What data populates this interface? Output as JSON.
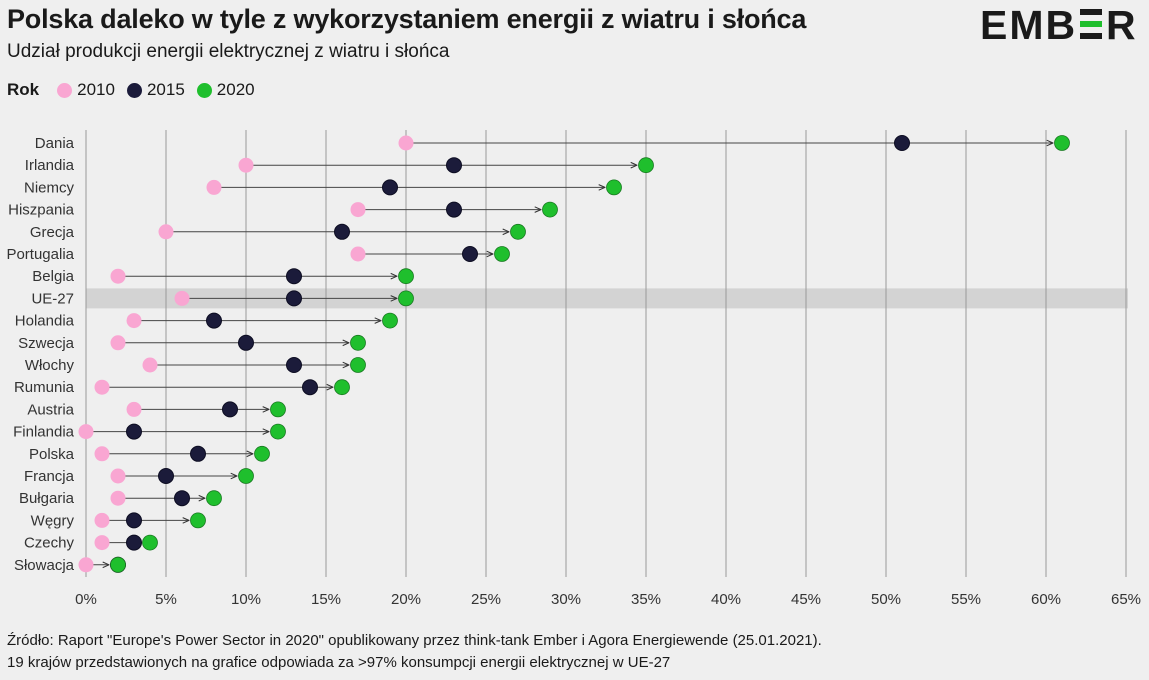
{
  "title": "Polska daleko w tyle z wykorzystaniem energii z wiatru i słońca",
  "subtitle": "Udział produkcji energii elektrycznej z wiatru i słońca",
  "logo_text": "EMBER",
  "legend": {
    "title": "Rok",
    "items": [
      {
        "label": "2010",
        "color": "#f9a6d2"
      },
      {
        "label": "2015",
        "color": "#1b1b3a"
      },
      {
        "label": "2020",
        "color": "#1fbf2d"
      }
    ]
  },
  "footer": {
    "line1": "Źródło: Raport \"Europe's Power Sector in 2020\" opublikowany przez think-tank Ember i Agora Energiewende (25.01.2021).",
    "line2": "19 krajów przedstawionych na grafice odpowiada za >97% konsumpcji energii elektrycznej w UE-27"
  },
  "colors": {
    "background": "#efefef",
    "highlight_row": "#d3d3d3",
    "grid": "#9a9a9a",
    "y2010": "#f9a6d2",
    "y2015": "#1b1b3a",
    "y2020": "#1fbf2d",
    "logo_accent": "#1fbf2d"
  },
  "chart_data": {
    "type": "dumbbell",
    "categories": [
      "Dania",
      "Irlandia",
      "Niemcy",
      "Hiszpania",
      "Grecja",
      "Portugalia",
      "Belgia",
      "UE-27",
      "Holandia",
      "Szwecja",
      "Włochy",
      "Rumunia",
      "Austria",
      "Finlandia",
      "Polska",
      "Francja",
      "Bułgaria",
      "Węgry",
      "Czechy",
      "Słowacja"
    ],
    "highlight_category": "UE-27",
    "series": [
      {
        "name": "2010",
        "values": [
          20,
          10,
          8,
          17,
          5,
          17,
          2,
          6,
          3,
          2,
          4,
          1,
          3,
          0,
          1,
          2,
          2,
          1,
          1,
          0
        ]
      },
      {
        "name": "2015",
        "values": [
          51,
          23,
          19,
          23,
          16,
          24,
          13,
          13,
          8,
          10,
          13,
          14,
          9,
          3,
          7,
          5,
          6,
          3,
          3,
          2
        ]
      },
      {
        "name": "2020",
        "values": [
          61,
          35,
          33,
          29,
          27,
          26,
          20,
          20,
          19,
          17,
          17,
          16,
          12,
          12,
          11,
          10,
          8,
          7,
          4,
          2
        ]
      }
    ],
    "xlim": [
      0,
      65
    ],
    "xticks": [
      0,
      5,
      10,
      15,
      20,
      25,
      30,
      35,
      40,
      45,
      50,
      55,
      60,
      65
    ],
    "tick_format": "%",
    "grid": true,
    "legend_position": "top-left"
  }
}
